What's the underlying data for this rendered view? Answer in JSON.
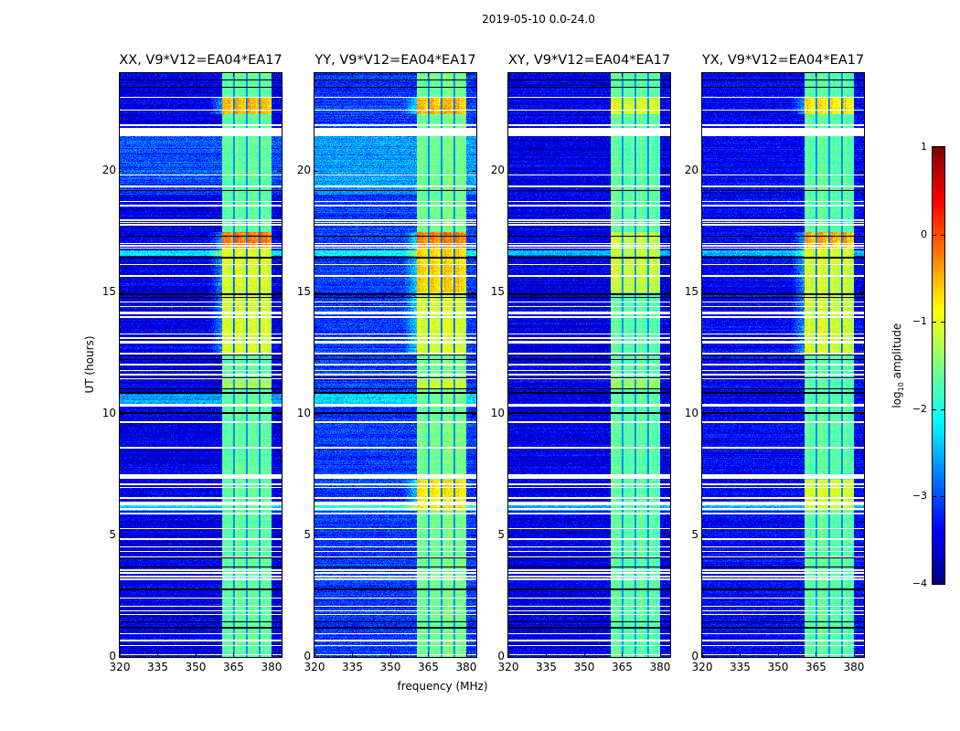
{
  "figure": {
    "suptitle": "2019-05-10 0.0-24.0",
    "xlabel": "frequency (MHz)",
    "ylabel": "UT (hours)",
    "colorbar": {
      "label_prefix": "log",
      "label_sub": "10",
      "label_suffix": " amplitude",
      "ticks": [
        "1",
        "0",
        "−1",
        "−2",
        "−3",
        "−4"
      ],
      "range": [
        -4,
        1
      ],
      "colormap": "jet"
    }
  },
  "chart_data": [
    {
      "type": "heatmap",
      "title": "XX, V9*V12=EA04*EA17",
      "xlim": [
        320,
        384
      ],
      "ylim": [
        0,
        24
      ],
      "xticks": [
        "320",
        "335",
        "350",
        "365",
        "380"
      ],
      "yticks": [
        "0",
        "5",
        "10",
        "15",
        "20"
      ],
      "background_level": -3.5,
      "band_level": -1.6,
      "band_intervals": [
        [
          22.3,
          23.0,
          -0.4
        ],
        [
          16.8,
          17.45,
          -0.1
        ],
        [
          12.5,
          16.8,
          -0.9
        ],
        [
          11.0,
          11.5,
          -1.3
        ]
      ],
      "background_intervals": [
        [
          16.5,
          16.7,
          -2.3
        ],
        [
          19.0,
          21.4,
          -3.0
        ],
        [
          6.0,
          6.4,
          -2.3
        ],
        [
          10.4,
          10.8,
          -2.6
        ]
      ]
    },
    {
      "type": "heatmap",
      "title": "YY, V9*V12=EA04*EA17",
      "xlim": [
        320,
        384
      ],
      "ylim": [
        0,
        24
      ],
      "xticks": [
        "320",
        "335",
        "350",
        "365",
        "380"
      ],
      "yticks": [
        "0",
        "5",
        "10",
        "15",
        "20"
      ],
      "background_level": -3.1,
      "band_level": -1.5,
      "band_intervals": [
        [
          22.3,
          23.0,
          -0.4
        ],
        [
          16.8,
          17.45,
          -0.1
        ],
        [
          15.0,
          16.8,
          -0.5
        ],
        [
          12.5,
          15.0,
          -0.9
        ],
        [
          11.0,
          11.5,
          -1.1
        ],
        [
          6.0,
          7.3,
          -0.6
        ]
      ],
      "background_intervals": [
        [
          16.5,
          16.7,
          -2.1
        ],
        [
          19.0,
          21.4,
          -2.6
        ],
        [
          6.0,
          6.4,
          -2.0
        ],
        [
          10.3,
          10.8,
          -2.3
        ]
      ]
    },
    {
      "type": "heatmap",
      "title": "XY, V9*V12=EA04*EA17",
      "xlim": [
        320,
        384
      ],
      "ylim": [
        0,
        24
      ],
      "xticks": [
        "320",
        "335",
        "350",
        "365",
        "380"
      ],
      "yticks": [
        "0",
        "5",
        "10",
        "15",
        "20"
      ],
      "background_level": -3.5,
      "band_level": -1.6,
      "band_intervals": [
        [
          22.3,
          23.0,
          -1.0
        ],
        [
          15.0,
          17.45,
          -1.1
        ],
        [
          11.0,
          11.5,
          -1.3
        ]
      ],
      "background_intervals": [
        [
          16.5,
          16.7,
          -2.5
        ],
        [
          6.0,
          6.4,
          -2.4
        ]
      ]
    },
    {
      "type": "heatmap",
      "title": "YX, V9*V12=EA04*EA17",
      "xlim": [
        320,
        384
      ],
      "ylim": [
        0,
        24
      ],
      "xticks": [
        "320",
        "335",
        "350",
        "365",
        "380"
      ],
      "yticks": [
        "0",
        "5",
        "10",
        "15",
        "20"
      ],
      "background_level": -3.4,
      "band_level": -1.6,
      "band_intervals": [
        [
          22.3,
          23.0,
          -0.6
        ],
        [
          16.8,
          17.45,
          -0.3
        ],
        [
          12.5,
          16.8,
          -0.9
        ],
        [
          6.0,
          7.3,
          -1.0
        ]
      ],
      "background_intervals": [
        [
          16.5,
          16.7,
          -2.5
        ],
        [
          6.0,
          6.4,
          -2.4
        ]
      ]
    }
  ],
  "shared": {
    "band_edges_mhz": [
      360.5,
      365.2,
      370.2,
      375.3,
      380.0
    ],
    "flagged_hours": [
      23.01,
      22.48,
      21.85,
      21.45,
      21.5,
      21.55,
      21.6,
      21.65,
      21.7,
      19.81,
      19.35,
      18.72,
      18.56,
      17.95,
      17.85,
      17.76,
      17.0,
      16.9,
      16.8,
      16.13,
      15.66,
      14.6,
      14.41,
      14.16,
      14.1,
      13.97,
      13.28,
      13.1,
      12.95,
      12.9,
      12.47,
      12.0,
      12.04,
      11.78,
      11.6,
      11.44,
      10.32,
      10.38,
      9.65,
      8.6,
      7.36,
      7.42,
      7.48,
      7.09,
      6.97,
      6.53,
      6.25,
      6.31,
      6.36,
      6.09,
      5.9,
      5.28,
      4.84,
      4.53,
      4.34,
      4.11,
      3.56,
      3.45,
      3.3,
      3.2,
      2.43,
      2.09,
      1.9,
      1.74,
      0.96,
      0.68,
      0.46,
      0.09
    ],
    "dead_hours": [
      23.73,
      23.41,
      19.17,
      17.31,
      16.41,
      14.91,
      14.78,
      12.42,
      12.23,
      11.47,
      11.03,
      10.84,
      10.88,
      10.03,
      4.09,
      3.71,
      2.78,
      1.46,
      1.19,
      1.22
    ]
  }
}
